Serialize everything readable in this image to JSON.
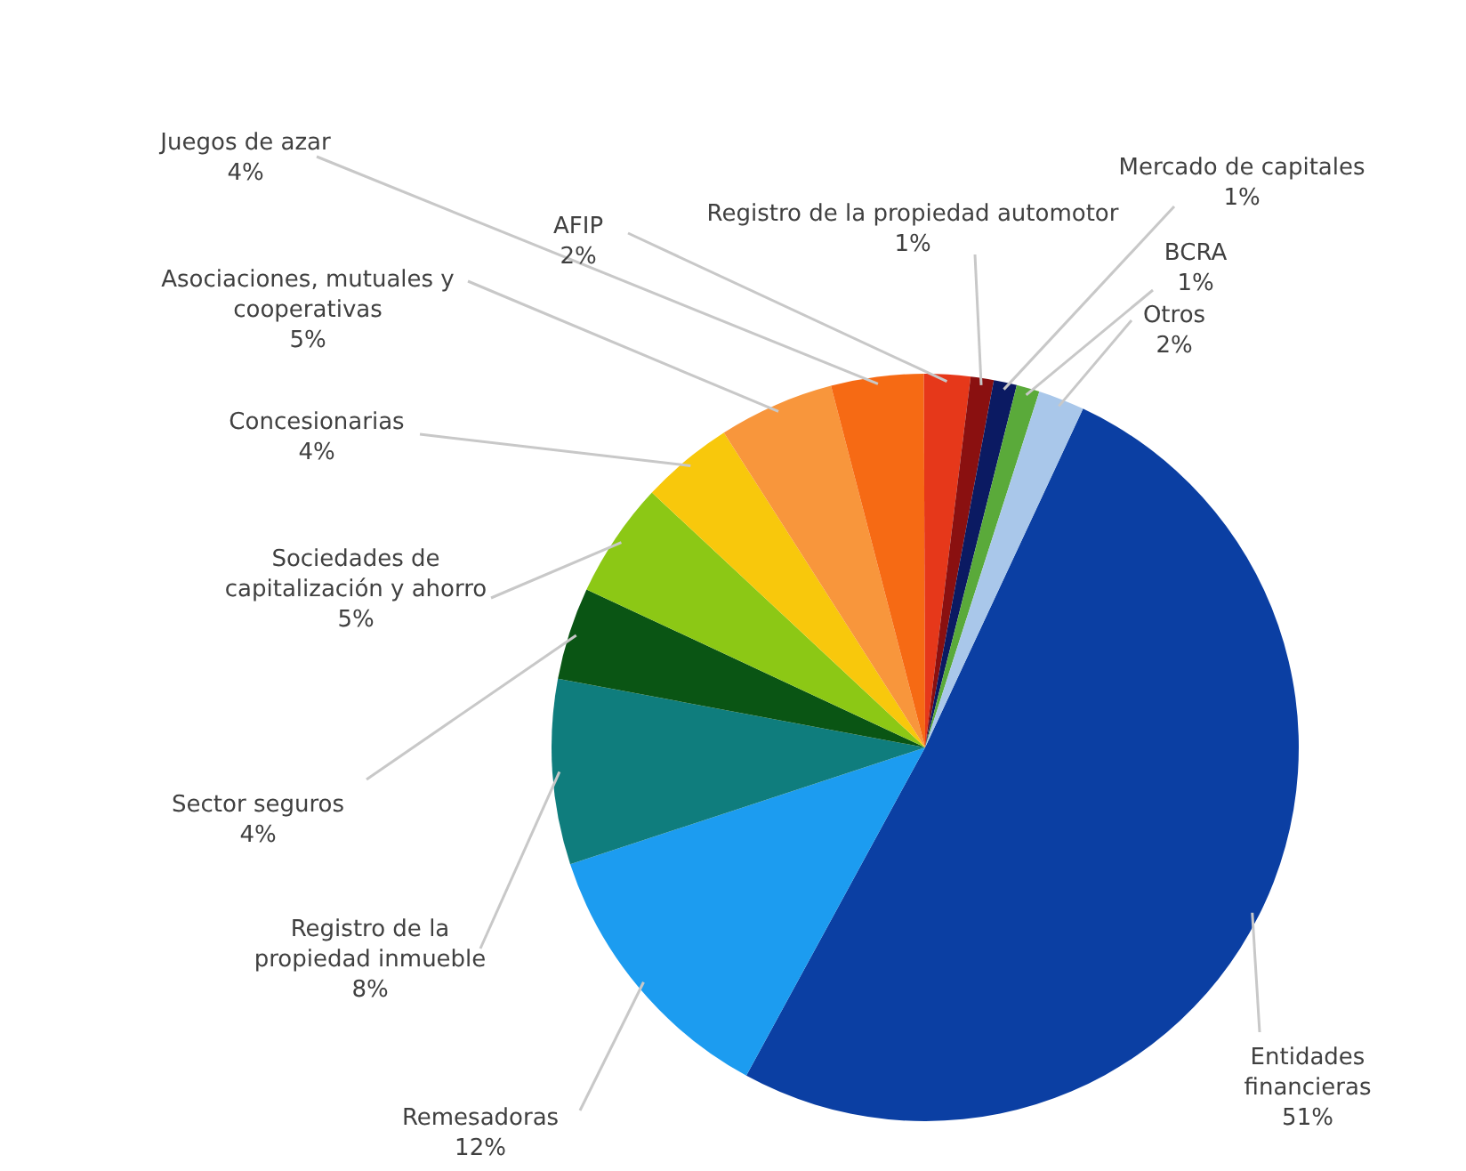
{
  "chart_data": {
    "type": "pie",
    "categories": [
      "Entidades financieras",
      "Remesadoras",
      "Registro de la propiedad inmueble",
      "Sector seguros",
      "Sociedades de capitalización y ahorro",
      "Concesionarias",
      "Asociaciones, mutuales y cooperativas",
      "Juegos de azar",
      "AFIP",
      "Registro de la propiedad automotor",
      "Mercado de capitales",
      "BCRA",
      "Otros"
    ],
    "values": [
      51,
      12,
      8,
      4,
      5,
      4,
      5,
      4,
      2,
      1,
      1,
      1,
      2
    ],
    "colors": [
      "#0b3fa3",
      "#1c9cf0",
      "#0f7d7d",
      "#0a5514",
      "#8cc815",
      "#f8c80c",
      "#f8963c",
      "#f66a14",
      "#e6381a",
      "#8a1010",
      "#0b1a62",
      "#5aaa3a",
      "#a9c7ea"
    ],
    "value_labels": [
      "51%",
      "12%",
      "8%",
      "4%",
      "5%",
      "4%",
      "5%",
      "4%",
      "2%",
      "1%",
      "1%",
      "1%",
      "2%"
    ],
    "data_labels": true,
    "legend": false
  }
}
